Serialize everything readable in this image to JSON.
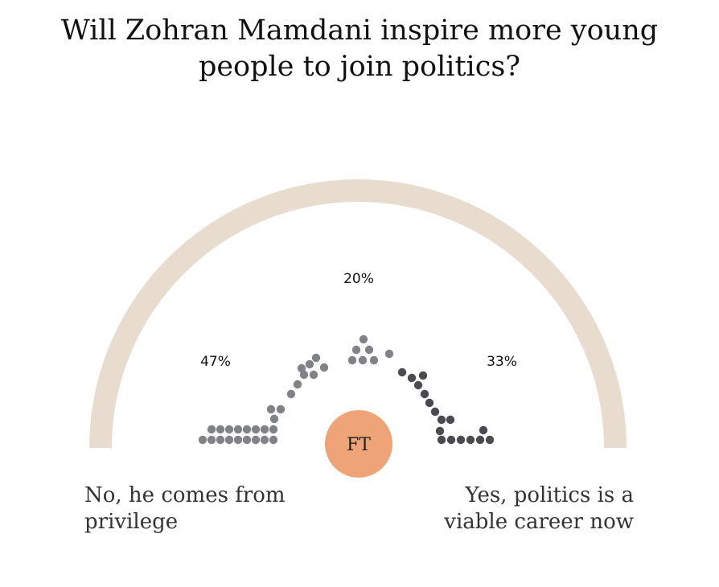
{
  "title": "Will Zohran Mamdani inspire more young people to join politics?",
  "logo_text": "FT",
  "captions": {
    "left": [
      "No, he comes from",
      "privilege"
    ],
    "right": [
      "Yes, politics is a",
      "viable career now"
    ]
  },
  "colors": {
    "arc": "#e8dccf",
    "dots_no": "#808285",
    "dots_neutral": "#808285",
    "dots_yes": "#4a4b4f",
    "badge": "#efa478",
    "text": "#111111"
  },
  "chart_data": {
    "type": "pie",
    "style": "semicircle dot poll",
    "categories": [
      "No, he comes from privilege",
      "",
      "Yes, politics is a viable career now"
    ],
    "values": [
      47,
      20,
      33
    ],
    "value_labels": [
      "47%",
      "20%",
      "33%"
    ]
  }
}
